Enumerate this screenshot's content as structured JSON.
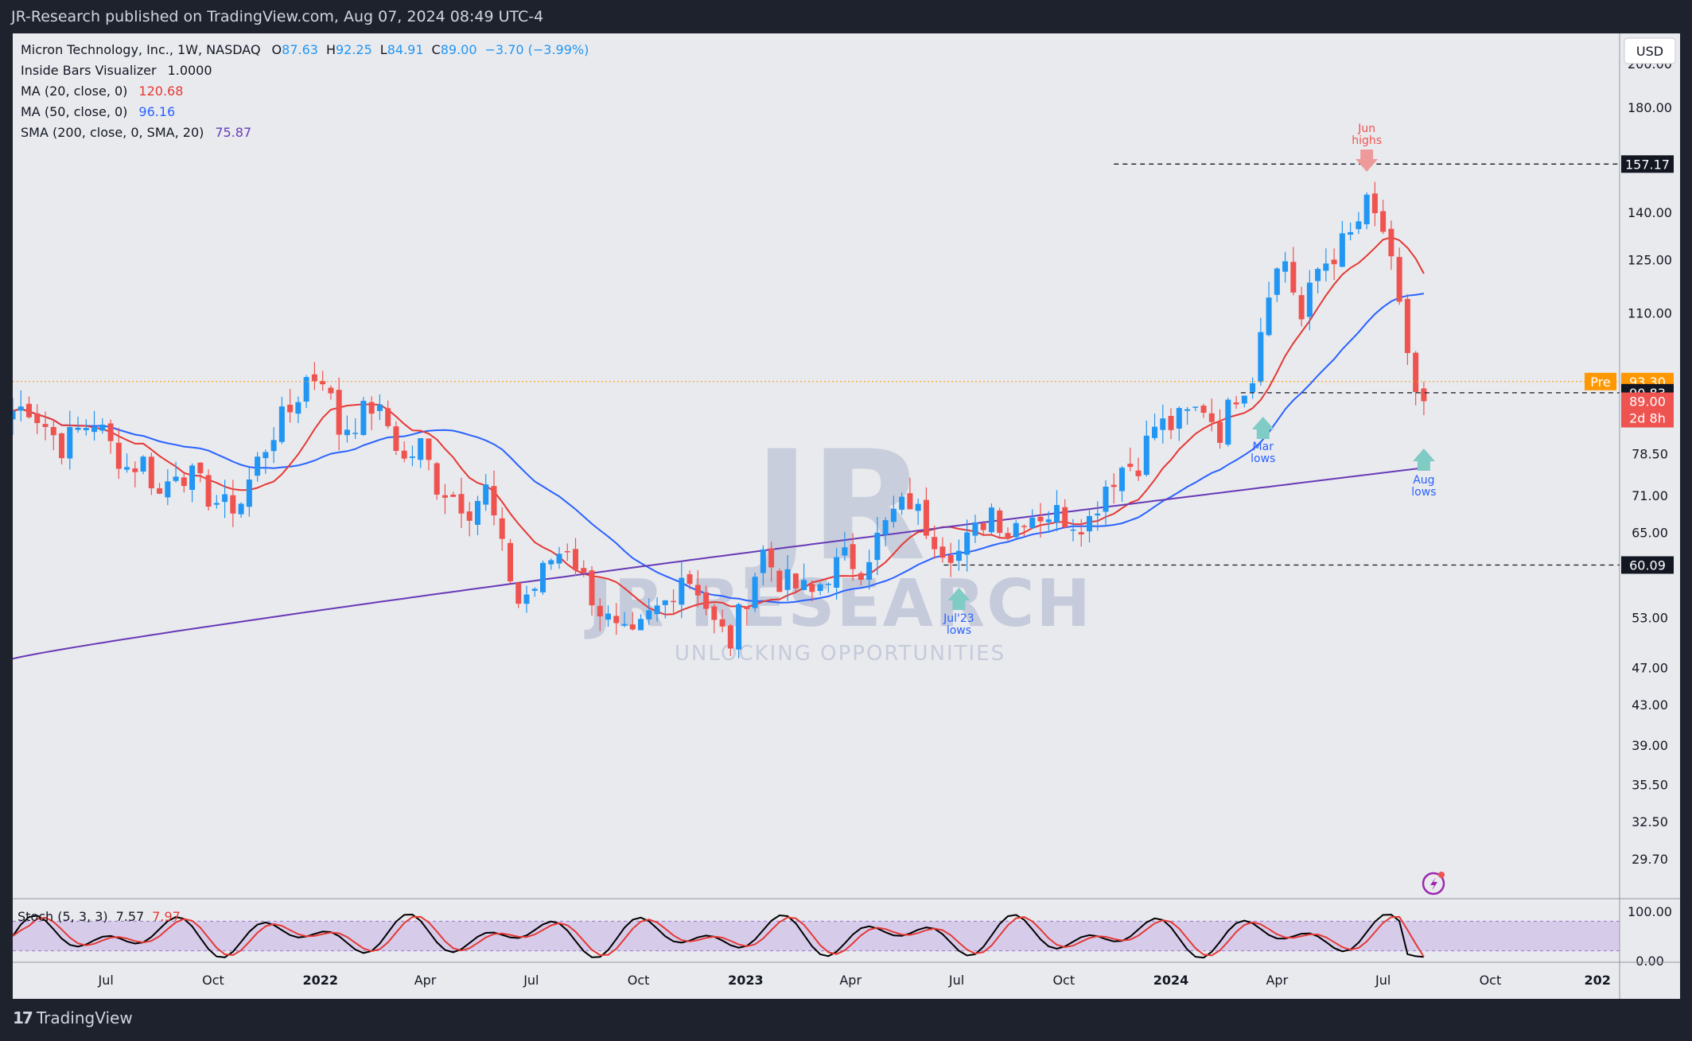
{
  "header": {
    "published": "JR-Research published on TradingView.com, Aug 07, 2024 08:49 UTC-4"
  },
  "footer": {
    "brand": "TradingView"
  },
  "legend": {
    "symbol": "Micron Technology, Inc., 1W, NASDAQ",
    "o_label": "O",
    "o": "87.63",
    "h_label": "H",
    "h": "92.25",
    "l_label": "L",
    "l": "84.91",
    "c_label": "C",
    "c": "89.00",
    "change": "−3.70 (−3.99%)",
    "ind1_name": "Inside Bars Visualizer",
    "ind1_val": "1.0000",
    "ma20_name": "MA (20, close, 0)",
    "ma20_val": "120.68",
    "ma50_name": "MA (50, close, 0)",
    "ma50_val": "96.16",
    "sma200_name": "SMA (200, close, 0, SMA, 20)",
    "sma200_val": "75.87"
  },
  "price_axis": {
    "currency": "USD",
    "ticks": [
      "200.00",
      "180.00",
      "140.00",
      "125.00",
      "110.00",
      "78.50",
      "71.00",
      "65.00",
      "53.00",
      "47.00",
      "43.00",
      "39.00",
      "35.50",
      "32.50",
      "29.70"
    ],
    "tags": {
      "high": "157.17",
      "pre_label": "Pre",
      "pre_value": "93.30",
      "mid": "90.83",
      "last": "89.00",
      "countdown": "2d 8h",
      "low": "60.09"
    }
  },
  "time_axis": [
    "Jul",
    "Oct",
    "2022",
    "Apr",
    "Jul",
    "Oct",
    "2023",
    "Apr",
    "Jul",
    "Oct",
    "2024",
    "Apr",
    "Jul",
    "Oct",
    "202"
  ],
  "annotations": {
    "jun_highs": "Jun\nhighs",
    "mar_lows": "Mar\nlows",
    "aug_lows": "Aug\nlows",
    "jul23_lows": "Jul'23\nlows"
  },
  "watermark": {
    "logo": "JR",
    "name": "JR RESEARCH",
    "tagline": "UNLOCKING OPPORTUNITIES"
  },
  "stoch": {
    "name": "Stoch (5, 3, 3)",
    "k": "7.57",
    "d": "7.97",
    "ticks": [
      "100.00",
      "0.00"
    ]
  },
  "colors": {
    "up": "#2196f3",
    "down": "#ef5350",
    "ma20": "#e53935",
    "ma50": "#2962ff",
    "sma200": "#673ab7",
    "pane_bg": "#e9eaee",
    "stoch_k": "#000000",
    "stoch_d": "#e53935",
    "stoch_band": "#d1c4e9"
  },
  "chart_data": {
    "type": "candlestick",
    "title": "Micron Technology, Inc., 1W, NASDAQ",
    "y_scale": "log",
    "ylim": [
      27,
      215
    ],
    "x_range": [
      "2021-04-12",
      "2025-01-20"
    ],
    "weekly_closes_approx": [
      [
        "2021-04-12",
        87
      ],
      [
        "2021-04-26",
        88
      ],
      [
        "2021-05-10",
        84
      ],
      [
        "2021-05-24",
        80
      ],
      [
        "2021-06-07",
        83
      ],
      [
        "2021-06-21",
        85
      ],
      [
        "2021-07-05",
        80
      ],
      [
        "2021-07-19",
        76
      ],
      [
        "2021-08-02",
        77
      ],
      [
        "2021-08-16",
        71
      ],
      [
        "2021-08-30",
        76
      ],
      [
        "2021-09-13",
        74
      ],
      [
        "2021-09-27",
        71
      ],
      [
        "2021-10-11",
        69
      ],
      [
        "2021-10-25",
        70
      ],
      [
        "2021-11-08",
        77
      ],
      [
        "2021-11-22",
        83
      ],
      [
        "2021-12-06",
        87
      ],
      [
        "2021-12-20",
        94
      ],
      [
        "2022-01-03",
        95
      ],
      [
        "2022-01-17",
        83
      ],
      [
        "2022-01-31",
        85
      ],
      [
        "2022-02-14",
        88
      ],
      [
        "2022-02-28",
        84
      ],
      [
        "2022-03-14",
        77
      ],
      [
        "2022-03-28",
        80
      ],
      [
        "2022-04-11",
        73
      ],
      [
        "2022-04-25",
        71
      ],
      [
        "2022-05-09",
        69
      ],
      [
        "2022-05-23",
        72
      ],
      [
        "2022-06-06",
        62
      ],
      [
        "2022-06-20",
        55
      ],
      [
        "2022-07-04",
        57
      ],
      [
        "2022-07-18",
        61
      ],
      [
        "2022-08-01",
        63
      ],
      [
        "2022-08-15",
        58
      ],
      [
        "2022-08-29",
        54
      ],
      [
        "2022-09-12",
        51
      ],
      [
        "2022-09-26",
        50
      ],
      [
        "2022-10-10",
        53
      ],
      [
        "2022-10-24",
        55
      ],
      [
        "2022-11-07",
        59
      ],
      [
        "2022-11-21",
        57
      ],
      [
        "2022-12-05",
        52
      ],
      [
        "2022-12-19",
        50
      ],
      [
        "2023-01-02",
        56
      ],
      [
        "2023-01-16",
        62
      ],
      [
        "2023-01-30",
        58
      ],
      [
        "2023-02-13",
        57
      ],
      [
        "2023-02-27",
        56
      ],
      [
        "2023-03-13",
        59
      ],
      [
        "2023-03-27",
        61
      ],
      [
        "2023-04-10",
        60
      ],
      [
        "2023-04-24",
        64
      ],
      [
        "2023-05-08",
        68
      ],
      [
        "2023-05-22",
        70
      ],
      [
        "2023-06-05",
        66
      ],
      [
        "2023-06-19",
        63
      ],
      [
        "2023-07-03",
        62
      ],
      [
        "2023-07-17",
        65
      ],
      [
        "2023-07-31",
        69
      ],
      [
        "2023-08-14",
        65
      ],
      [
        "2023-08-28",
        68
      ],
      [
        "2023-09-11",
        68
      ],
      [
        "2023-09-25",
        68
      ],
      [
        "2023-10-09",
        67
      ],
      [
        "2023-10-23",
        67
      ],
      [
        "2023-11-06",
        73
      ],
      [
        "2023-11-20",
        76
      ],
      [
        "2023-12-04",
        77
      ],
      [
        "2023-12-18",
        84
      ],
      [
        "2024-01-01",
        84
      ],
      [
        "2024-01-15",
        86
      ],
      [
        "2024-01-29",
        88
      ],
      [
        "2024-02-12",
        83
      ],
      [
        "2024-02-26",
        91
      ],
      [
        "2024-03-11",
        95
      ],
      [
        "2024-03-25",
        118
      ],
      [
        "2024-04-08",
        125
      ],
      [
        "2024-04-22",
        108
      ],
      [
        "2024-05-06",
        122
      ],
      [
        "2024-05-20",
        127
      ],
      [
        "2024-06-03",
        132
      ],
      [
        "2024-06-17",
        142
      ],
      [
        "2024-07-01",
        134
      ],
      [
        "2024-07-15",
        110
      ],
      [
        "2024-07-29",
        91
      ],
      [
        "2024-08-05",
        89
      ]
    ],
    "key_levels": {
      "jun_high": 157.17,
      "mar_low": 90.83,
      "jul23_low": 60.09,
      "premarket": 93.3,
      "last": 89.0
    },
    "ma": {
      "ma20": 120.68,
      "ma50": 96.16,
      "sma200": 75.87
    },
    "stochastic": {
      "k": 7.57,
      "d": 7.97,
      "upper_band": 80,
      "lower_band": 20
    }
  }
}
